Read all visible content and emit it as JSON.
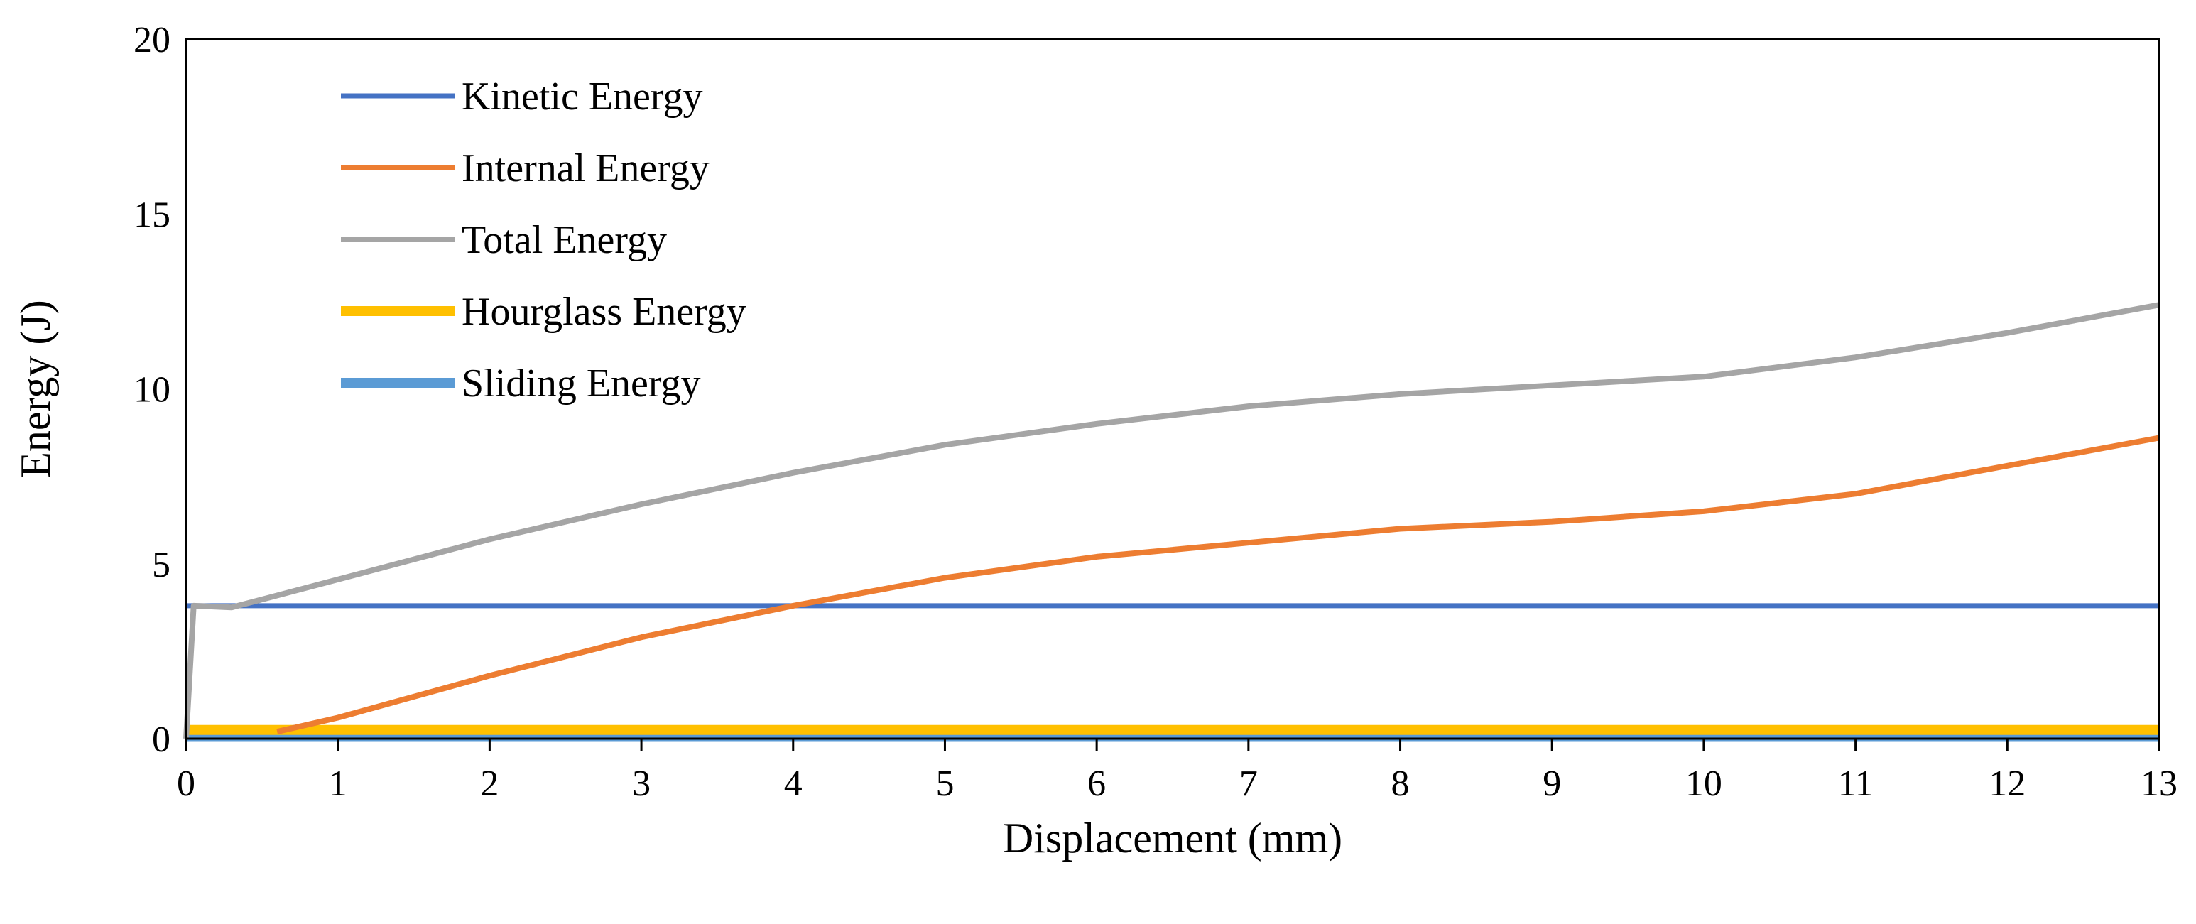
{
  "chart_data": {
    "type": "line",
    "title": "",
    "xlabel": "Displacement (mm)",
    "ylabel": "Energy (J)",
    "xlim": [
      0,
      13
    ],
    "ylim": [
      0,
      20
    ],
    "xticks": [
      "0",
      "1",
      "2",
      "3",
      "4",
      "5",
      "6",
      "7",
      "8",
      "9",
      "10",
      "11",
      "12",
      "13"
    ],
    "yticks": [
      "0",
      "5",
      "10",
      "15",
      "20"
    ],
    "grid": false,
    "legend_position": "top-left",
    "series": [
      {
        "name": "Kinetic Energy",
        "color": "#4472C4",
        "x": [
          0,
          13
        ],
        "y": [
          3.8,
          3.8
        ]
      },
      {
        "name": "Internal Energy",
        "color": "#ED7D31",
        "x": [
          0.6,
          1,
          2,
          3,
          4,
          5,
          6,
          7,
          8,
          9,
          10,
          10.5,
          11,
          12,
          13
        ],
        "y": [
          0.2,
          0.6,
          1.8,
          2.9,
          3.8,
          4.6,
          5.2,
          5.6,
          6.0,
          6.2,
          6.5,
          6.75,
          7.0,
          7.8,
          8.6
        ]
      },
      {
        "name": "Total Energy",
        "color": "#A5A5A5",
        "x": [
          0,
          0.05,
          0.3,
          1,
          2,
          3,
          4,
          5,
          6,
          7,
          8,
          9,
          10,
          11,
          12,
          13
        ],
        "y": [
          0,
          3.8,
          3.75,
          4.55,
          5.7,
          6.7,
          7.6,
          8.4,
          9.0,
          9.5,
          9.85,
          10.1,
          10.35,
          10.9,
          11.6,
          12.4
        ]
      },
      {
        "name": "Hourglass Energy",
        "color": "#FFC000",
        "x": [
          0,
          13
        ],
        "y": [
          0.25,
          0.25
        ]
      },
      {
        "name": "Sliding Energy",
        "color": "#5B9BD5",
        "x": [
          0,
          13
        ],
        "y": [
          0.05,
          0.05
        ]
      }
    ]
  }
}
